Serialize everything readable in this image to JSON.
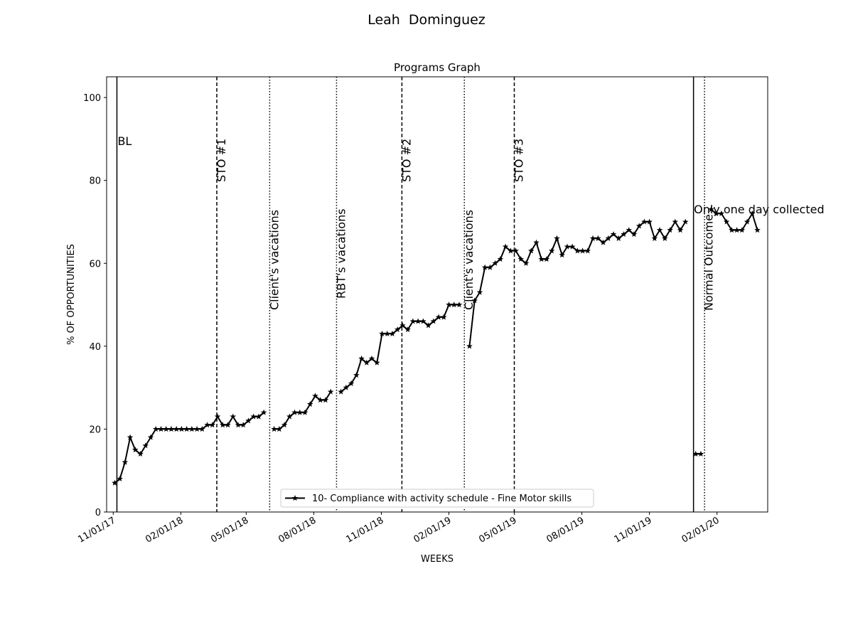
{
  "chart_data": {
    "type": "line",
    "title": "Leah  Dominguez",
    "subtitle": "Programs Graph",
    "x_label": "WEEKS",
    "y_label": "% OF OPPORTUNITIES",
    "xlim": [
      "2017-10-23",
      "2020-04-10"
    ],
    "ylim": [
      0,
      105
    ],
    "yticks": [
      0,
      20,
      40,
      60,
      80,
      100
    ],
    "xticks": [
      {
        "value": "2017-11-01",
        "label": "11/01/17"
      },
      {
        "value": "2018-02-01",
        "label": "02/01/18"
      },
      {
        "value": "2018-05-01",
        "label": "05/01/18"
      },
      {
        "value": "2018-08-01",
        "label": "08/01/18"
      },
      {
        "value": "2018-11-01",
        "label": "11/01/18"
      },
      {
        "value": "2019-02-01",
        "label": "02/01/19"
      },
      {
        "value": "2019-05-01",
        "label": "05/01/19"
      },
      {
        "value": "2019-08-01",
        "label": "08/01/19"
      },
      {
        "value": "2019-11-01",
        "label": "11/01/19"
      },
      {
        "value": "2020-02-01",
        "label": "02/01/20"
      }
    ],
    "legend_position": "lower center",
    "marker": "star",
    "phase_lines": [
      {
        "x": "2017-11-06",
        "label": "BL",
        "style": "solid"
      },
      {
        "x": "2018-03-22",
        "label": "STO #1",
        "style": "dashed"
      },
      {
        "x": "2018-06-02",
        "label": "Client's vacations",
        "style": "dotted"
      },
      {
        "x": "2018-09-01",
        "label": "RBT's vacations",
        "style": "dotted"
      },
      {
        "x": "2018-11-29",
        "label": "STO #2",
        "style": "dashed"
      },
      {
        "x": "2019-02-22",
        "label": "Client's vacations",
        "style": "dotted"
      },
      {
        "x": "2019-05-01",
        "label": "STO #3",
        "style": "dashed"
      },
      {
        "x": "2019-12-31",
        "label": "Normal Outcome",
        "style": "solid"
      },
      {
        "x": "2020-01-15",
        "label": "Only one day collected",
        "style": "dotted"
      }
    ],
    "x": [
      "2017-11-03",
      "2017-11-10",
      "2017-11-17",
      "2017-11-24",
      "2017-12-01",
      "2017-12-08",
      "2017-12-15",
      "2017-12-22",
      "2017-12-29",
      "2018-01-05",
      "2018-01-12",
      "2018-01-19",
      "2018-01-26",
      "2018-02-02",
      "2018-02-09",
      "2018-02-16",
      "2018-02-23",
      "2018-03-02",
      "2018-03-09",
      "2018-03-16",
      "2018-03-23",
      "2018-03-30",
      "2018-04-06",
      "2018-04-13",
      "2018-04-20",
      "2018-04-27",
      "2018-05-04",
      "2018-05-11",
      "2018-05-18",
      "2018-05-25",
      "2018-06-01",
      "2018-06-08",
      "2018-06-15",
      "2018-06-22",
      "2018-06-29",
      "2018-07-06",
      "2018-07-13",
      "2018-07-20",
      "2018-07-27",
      "2018-08-03",
      "2018-08-10",
      "2018-08-17",
      "2018-08-24",
      "2018-08-31",
      "2018-09-07",
      "2018-09-14",
      "2018-09-21",
      "2018-09-28",
      "2018-10-05",
      "2018-10-12",
      "2018-10-19",
      "2018-10-26",
      "2018-11-02",
      "2018-11-09",
      "2018-11-16",
      "2018-11-23",
      "2018-11-30",
      "2018-12-07",
      "2018-12-14",
      "2018-12-21",
      "2018-12-28",
      "2019-01-04",
      "2019-01-11",
      "2019-01-18",
      "2019-01-25",
      "2019-02-01",
      "2019-02-08",
      "2019-02-15",
      "2019-02-22",
      "2019-03-01",
      "2019-03-08",
      "2019-03-15",
      "2019-03-22",
      "2019-03-29",
      "2019-04-05",
      "2019-04-12",
      "2019-04-19",
      "2019-04-26",
      "2019-05-03",
      "2019-05-10",
      "2019-05-17",
      "2019-05-24",
      "2019-05-31",
      "2019-06-07",
      "2019-06-14",
      "2019-06-21",
      "2019-06-28",
      "2019-07-05",
      "2019-07-12",
      "2019-07-19",
      "2019-07-26",
      "2019-08-02",
      "2019-08-09",
      "2019-08-16",
      "2019-08-23",
      "2019-08-30",
      "2019-09-06",
      "2019-09-13",
      "2019-09-20",
      "2019-09-27",
      "2019-10-04",
      "2019-10-11",
      "2019-10-18",
      "2019-10-25",
      "2019-11-01",
      "2019-11-08",
      "2019-11-15",
      "2019-11-22",
      "2019-11-29",
      "2019-12-06",
      "2019-12-13",
      "2019-12-20",
      "2019-12-27",
      "2020-01-03",
      "2020-01-10",
      "2020-01-17",
      "2020-01-24",
      "2020-01-31",
      "2020-02-07",
      "2020-02-14",
      "2020-02-21",
      "2020-02-28",
      "2020-03-06",
      "2020-03-13",
      "2020-03-20",
      "2020-03-27"
    ],
    "series": [
      {
        "name": "10- Compliance with activity schedule - Fine Motor skills",
        "color": "#000000",
        "values": [
          7,
          8,
          12,
          18,
          15,
          14,
          16,
          18,
          20,
          20,
          20,
          20,
          20,
          20,
          20,
          20,
          20,
          20,
          21,
          21,
          23,
          21,
          21,
          23,
          21,
          21,
          22,
          23,
          23,
          24,
          null,
          20,
          20,
          21,
          23,
          24,
          24,
          24,
          26,
          28,
          27,
          27,
          29,
          null,
          29,
          30,
          31,
          33,
          37,
          36,
          37,
          36,
          43,
          43,
          43,
          44,
          45,
          44,
          46,
          46,
          46,
          45,
          46,
          47,
          47,
          50,
          50,
          50,
          null,
          40,
          51,
          53,
          59,
          59,
          60,
          61,
          64,
          63,
          63,
          61,
          60,
          63,
          65,
          61,
          61,
          63,
          66,
          62,
          64,
          64,
          63,
          63,
          63,
          66,
          66,
          65,
          66,
          67,
          66,
          67,
          68,
          67,
          69,
          70,
          70,
          66,
          68,
          66,
          68,
          70,
          68,
          70,
          null,
          14,
          14,
          null,
          73,
          72,
          72,
          70,
          68,
          68,
          68,
          70,
          72,
          68
        ]
      }
    ]
  }
}
